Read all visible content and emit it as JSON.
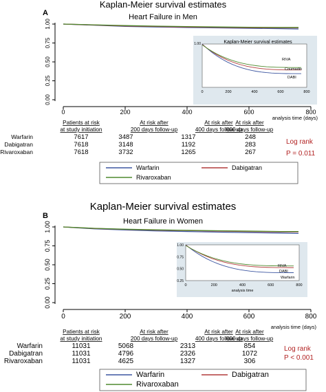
{
  "colors": {
    "warfarin": "#3b55a0",
    "dabigatran": "#b23a3a",
    "rivaroxaban": "#4f8a2e",
    "inset_bg": "#dfe8ee",
    "logrank": "#b22222"
  },
  "risk_table": {
    "col_headers": [
      [
        "Patients at risk",
        "at study initiation"
      ],
      [
        "At risk after",
        "200 days follow-up"
      ],
      [
        "At risk after",
        "400 days follow-up"
      ],
      [
        "At risk after",
        "600 days follow-up"
      ]
    ],
    "drug_names": [
      "Warfarin",
      "Dabigatran",
      "Rivaroxaban"
    ]
  },
  "chart_data": [
    {
      "type": "line",
      "panel": "A",
      "title": "Kaplan-Meier survival estimates",
      "subtitle": "Heart Failure in Men",
      "xlabel": "analysis time (days)",
      "xlim": [
        0,
        800
      ],
      "ylim": [
        0,
        1
      ],
      "xticks": [
        "0",
        "200",
        "400",
        "600",
        "800"
      ],
      "yticks": [
        "0.00",
        "0.25",
        "0.50",
        "0.75",
        "1.00"
      ],
      "series": [
        {
          "name": "Warfarin",
          "x": [
            0,
            100,
            200,
            300,
            400,
            500,
            600,
            700,
            760
          ],
          "y": [
            1.0,
            0.985,
            0.97,
            0.962,
            0.955,
            0.95,
            0.945,
            0.94,
            0.935
          ]
        },
        {
          "name": "Dabigatran",
          "x": [
            0,
            100,
            200,
            300,
            400,
            500,
            600,
            700,
            760
          ],
          "y": [
            1.0,
            0.988,
            0.975,
            0.968,
            0.962,
            0.957,
            0.953,
            0.95,
            0.95
          ]
        },
        {
          "name": "Rivaroxaban",
          "x": [
            0,
            100,
            200,
            300,
            400,
            500,
            600,
            700,
            760
          ],
          "y": [
            1.0,
            0.99,
            0.98,
            0.973,
            0.967,
            0.962,
            0.958,
            0.955,
            0.955
          ]
        }
      ],
      "inset": {
        "title": "Kaplan-Meier survival estimates",
        "ytick_top": "1.00",
        "xticks": [
          "0",
          "200",
          "400",
          "600",
          "800"
        ],
        "xlabel": "",
        "labels": [
          "RIVA",
          "Coumadin",
          "DABI"
        ]
      },
      "risk_rows": [
        {
          "drug": "Warfarin",
          "values": [
            "7617",
            "3487",
            "1317",
            "248"
          ]
        },
        {
          "drug": "Dabigatran",
          "values": [
            "7618",
            "3148",
            "1192",
            "283"
          ]
        },
        {
          "drug": "Rivaroxaban",
          "values": [
            "7618",
            "3732",
            "1265",
            "267"
          ]
        }
      ],
      "log_rank": {
        "label": "Log rank",
        "p": "P = 0.011"
      },
      "legend": [
        "Warfarin",
        "Dabigatran",
        "Rivaroxaban"
      ]
    },
    {
      "type": "line",
      "panel": "B",
      "title": "Kaplan-Meier survival estimates",
      "subtitle": "Heart Failure in Women",
      "xlabel": "analysis time (days)",
      "xlim": [
        0,
        800
      ],
      "ylim": [
        0,
        1
      ],
      "xticks": [
        "0",
        "200",
        "400",
        "600",
        "800"
      ],
      "yticks": [
        "0.00",
        "0.25",
        "0.50",
        "0.75",
        "1.00"
      ],
      "series": [
        {
          "name": "Warfarin",
          "x": [
            0,
            100,
            200,
            300,
            400,
            500,
            600,
            700,
            760
          ],
          "y": [
            1.0,
            0.975,
            0.96,
            0.948,
            0.94,
            0.932,
            0.925,
            0.92,
            0.915
          ]
        },
        {
          "name": "Dabigatran",
          "x": [
            0,
            100,
            200,
            300,
            400,
            500,
            600,
            700,
            760
          ],
          "y": [
            1.0,
            0.98,
            0.968,
            0.958,
            0.952,
            0.946,
            0.94,
            0.935,
            0.935
          ]
        },
        {
          "name": "Rivaroxaban",
          "x": [
            0,
            100,
            200,
            300,
            400,
            500,
            600,
            700,
            760
          ],
          "y": [
            1.0,
            0.982,
            0.97,
            0.962,
            0.955,
            0.95,
            0.945,
            0.94,
            0.94
          ]
        }
      ],
      "inset": {
        "title": "Kaplan-Meier survival estimates",
        "ytick_top": "1.00",
        "yticks": [
          "1.00",
          "0.75",
          "0.50",
          "0.25"
        ],
        "xticks": [
          "0",
          "200",
          "400",
          "600",
          "800"
        ],
        "xlabel": "analysis time",
        "labels": [
          "RIVA",
          "DABI",
          "Warfarin"
        ]
      },
      "risk_rows": [
        {
          "drug": "Warfarin",
          "values": [
            "11031",
            "5068",
            "2313",
            "854"
          ]
        },
        {
          "drug": "Dabigatran",
          "values": [
            "11031",
            "4796",
            "2326",
            "1072"
          ]
        },
        {
          "drug": "Rivaroxaban",
          "values": [
            "11031",
            "4625",
            "1327",
            "306"
          ]
        }
      ],
      "log_rank": {
        "label": "Log rank",
        "p": "P < 0.001"
      },
      "legend": [
        "Warfarin",
        "Dabigatran",
        "Rivaroxaban"
      ]
    }
  ]
}
